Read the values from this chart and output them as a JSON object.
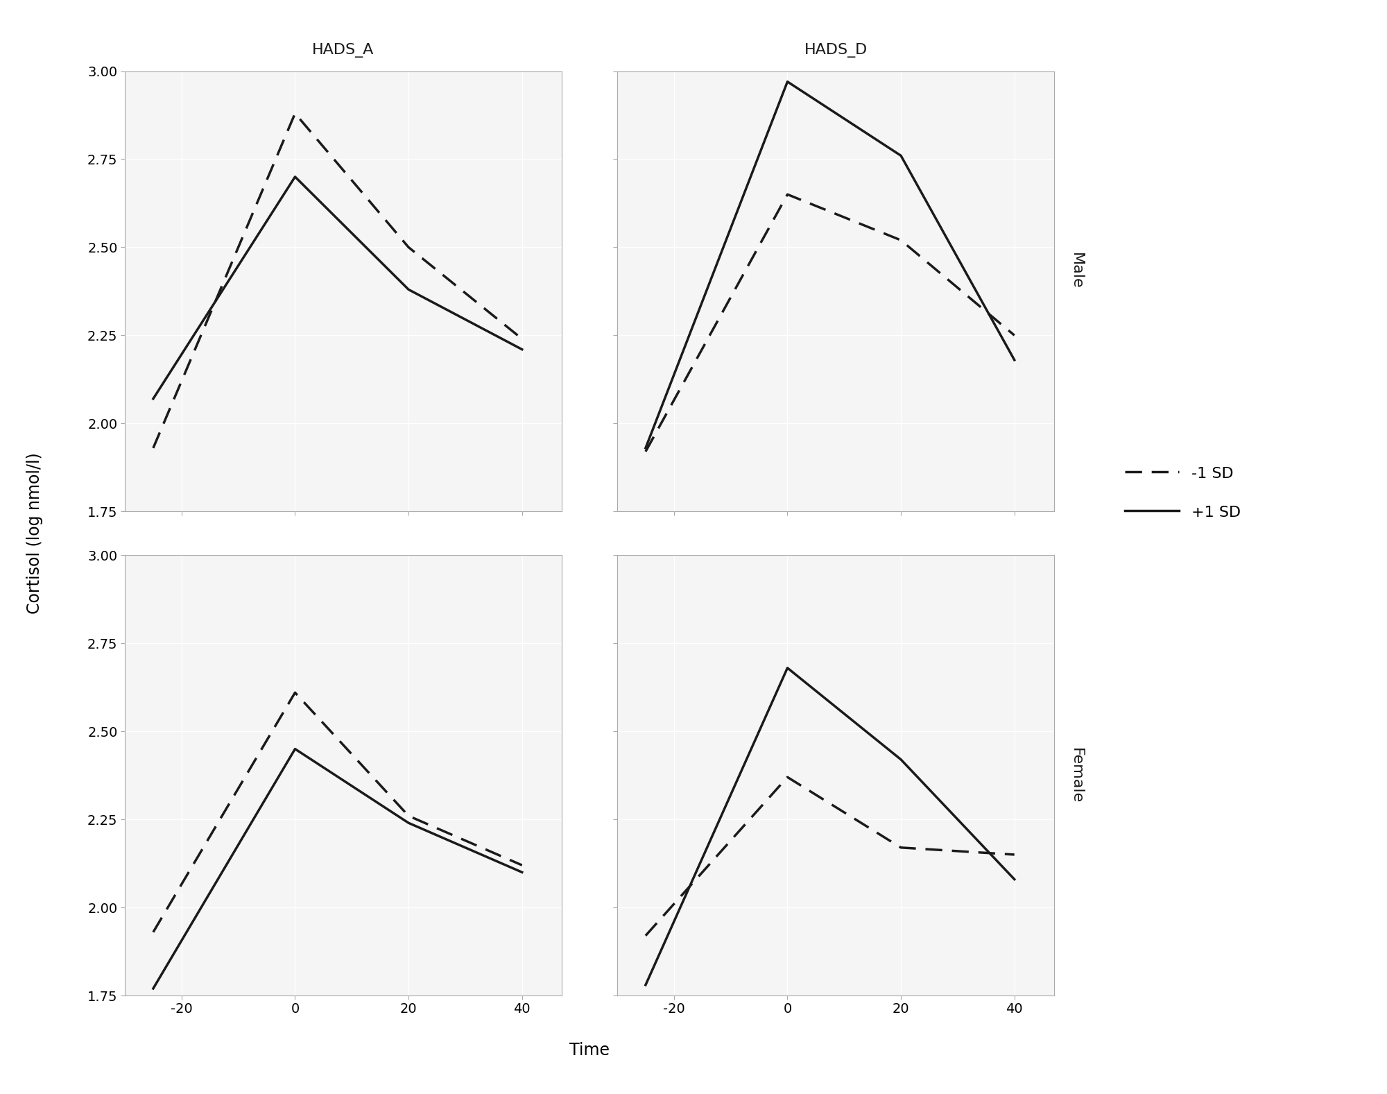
{
  "time_points": [
    -25,
    0,
    20,
    40
  ],
  "panels": {
    "HADS_A_Male": {
      "minus1sd": [
        1.93,
        2.88,
        2.5,
        2.24
      ],
      "plus1sd": [
        2.07,
        2.7,
        2.38,
        2.21
      ]
    },
    "HADS_D_Male": {
      "minus1sd": [
        1.92,
        2.65,
        2.52,
        2.25
      ],
      "plus1sd": [
        1.93,
        2.97,
        2.76,
        2.18
      ]
    },
    "HADS_A_Female": {
      "minus1sd": [
        1.93,
        2.61,
        2.26,
        2.12
      ],
      "plus1sd": [
        1.77,
        2.45,
        2.24,
        2.1
      ]
    },
    "HADS_D_Female": {
      "minus1sd": [
        1.92,
        2.37,
        2.17,
        2.15
      ],
      "plus1sd": [
        1.78,
        2.68,
        2.42,
        2.08
      ]
    }
  },
  "col_labels": [
    "HADS_A",
    "HADS_D"
  ],
  "row_labels": [
    "Male",
    "Female"
  ],
  "xlabel": "Time",
  "ylabel": "Cortisol (log nmol/l)",
  "ylim": [
    1.75,
    3.0
  ],
  "yticks": [
    1.75,
    2.0,
    2.25,
    2.5,
    2.75,
    3.0
  ],
  "xticks": [
    -20,
    0,
    20,
    40
  ],
  "xlim": [
    -30,
    47
  ],
  "line_color": "#1a1a1a",
  "dashed_label": "-1 SD",
  "solid_label": "+1 SD",
  "plot_bg": "#f5f5f5",
  "grid_color": "#ffffff",
  "strip_bg": "#c8c8c8",
  "strip_text_color": "#1a1a1a",
  "legend_fontsize": 16,
  "axis_fontsize": 17,
  "strip_fontsize": 16,
  "tick_fontsize": 14,
  "ylabel_fontsize": 17,
  "line_width": 2.5
}
